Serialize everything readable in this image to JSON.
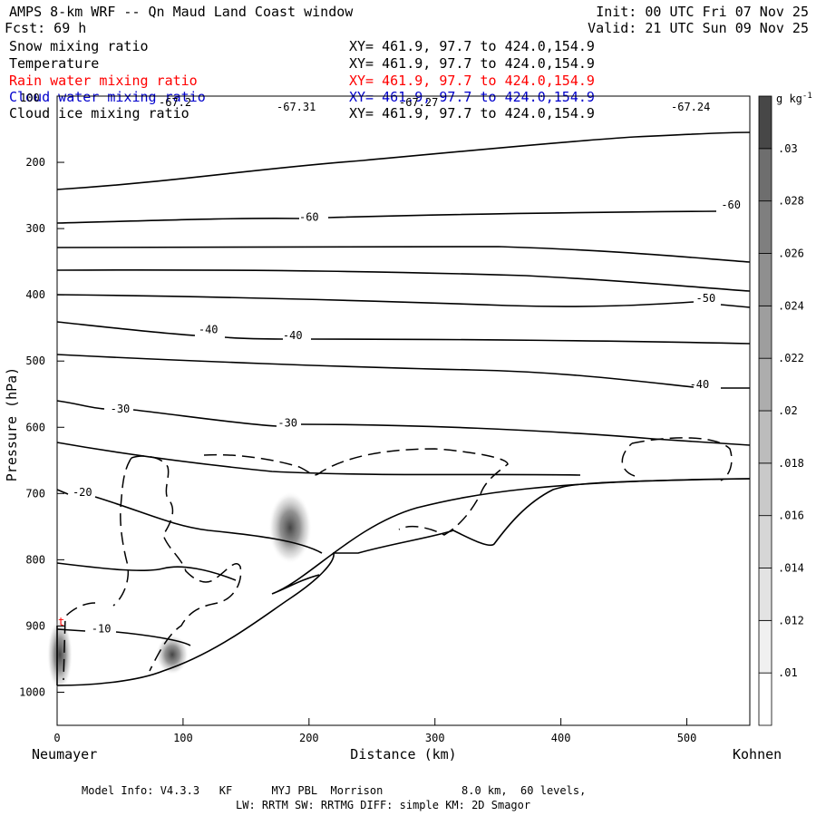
{
  "header": {
    "title": "AMPS 8-km WRF -- Qn Maud Land Coast window",
    "init": "Init: 00 UTC Fri 07 Nov 25",
    "fcst": "Fcst:   69 h",
    "valid": "Valid: 21 UTC Sun 09 Nov 25"
  },
  "fields": [
    {
      "name": "Snow mixing ratio",
      "xy": "XY= 461.9, 97.7 to 424.0,154.9",
      "color": "#000000"
    },
    {
      "name": "Temperature",
      "xy": "XY= 461.9, 97.7 to 424.0,154.9",
      "color": "#000000"
    },
    {
      "name": "Rain water mixing ratio",
      "xy": "XY= 461.9, 97.7 to 424.0,154.9",
      "color": "#ff0000"
    },
    {
      "name": "Cloud water mixing ratio",
      "xy": "XY= 461.9, 97.7 to 424.0,154.9",
      "color": "#0000cc"
    },
    {
      "name": "Cloud ice mixing ratio",
      "xy": "XY= 461.9, 97.7 to 424.0,154.9",
      "color": "#000000"
    }
  ],
  "top_labels": [
    "-67.2",
    "-67.31",
    "-67.27",
    "-67.24"
  ],
  "chart_data": {
    "type": "contour",
    "title": "AMPS 8-km WRF -- Qn Maud Land Coast window",
    "xlabel": "Distance (km)",
    "ylabel": "Pressure (hPa)",
    "x_start_label": "Neumayer",
    "x_end_label": "Kohnen",
    "xlim": [
      0,
      550
    ],
    "ylim": [
      1050,
      100
    ],
    "x_ticks": [
      0,
      100,
      200,
      300,
      400,
      500
    ],
    "y_ticks": [
      200,
      300,
      400,
      500,
      600,
      700,
      800,
      900,
      1000
    ],
    "y_tick_labels": [
      "200",
      "300",
      "400",
      "500",
      "600",
      "700",
      "800",
      "900",
      "1000"
    ],
    "y_top_label": "100",
    "temperature_contour_labels": [
      {
        "x": 200,
        "p": 288,
        "text": "-60"
      },
      {
        "x": 535,
        "p": 270,
        "text": "-60"
      },
      {
        "x": 515,
        "p": 411,
        "text": "-50"
      },
      {
        "x": 120,
        "p": 458,
        "text": "-40"
      },
      {
        "x": 187,
        "p": 467,
        "text": "-40"
      },
      {
        "x": 510,
        "p": 541,
        "text": "-40"
      },
      {
        "x": 50,
        "p": 578,
        "text": "-30"
      },
      {
        "x": 183,
        "p": 599,
        "text": "-30"
      },
      {
        "x": 20,
        "p": 704,
        "text": "-20"
      },
      {
        "x": 35,
        "p": 910,
        "text": "-10"
      }
    ],
    "colorbar": {
      "unit": "g kg-1",
      "levels": [
        ".01",
        ".012",
        ".014",
        ".016",
        ".018",
        ".02",
        ".022",
        ".024",
        ".026",
        ".028",
        ".03"
      ],
      "colors": [
        "#ffffff",
        "#f0f0f0",
        "#e3e3e3",
        "#d6d6d6",
        "#c9c9c9",
        "#bcbcbc",
        "#adadad",
        "#9e9e9e",
        "#8f8f8f",
        "#7f7f7f",
        "#6e6e6e",
        "#474747"
      ]
    }
  },
  "footer": {
    "line1": "Model Info: V4.3.3   KF      MYJ PBL  Morrison            8.0 km,  60 levels,",
    "line2": "LW: RRTM SW: RRTMG   DIFF: simple KM: 2D Smagor"
  }
}
